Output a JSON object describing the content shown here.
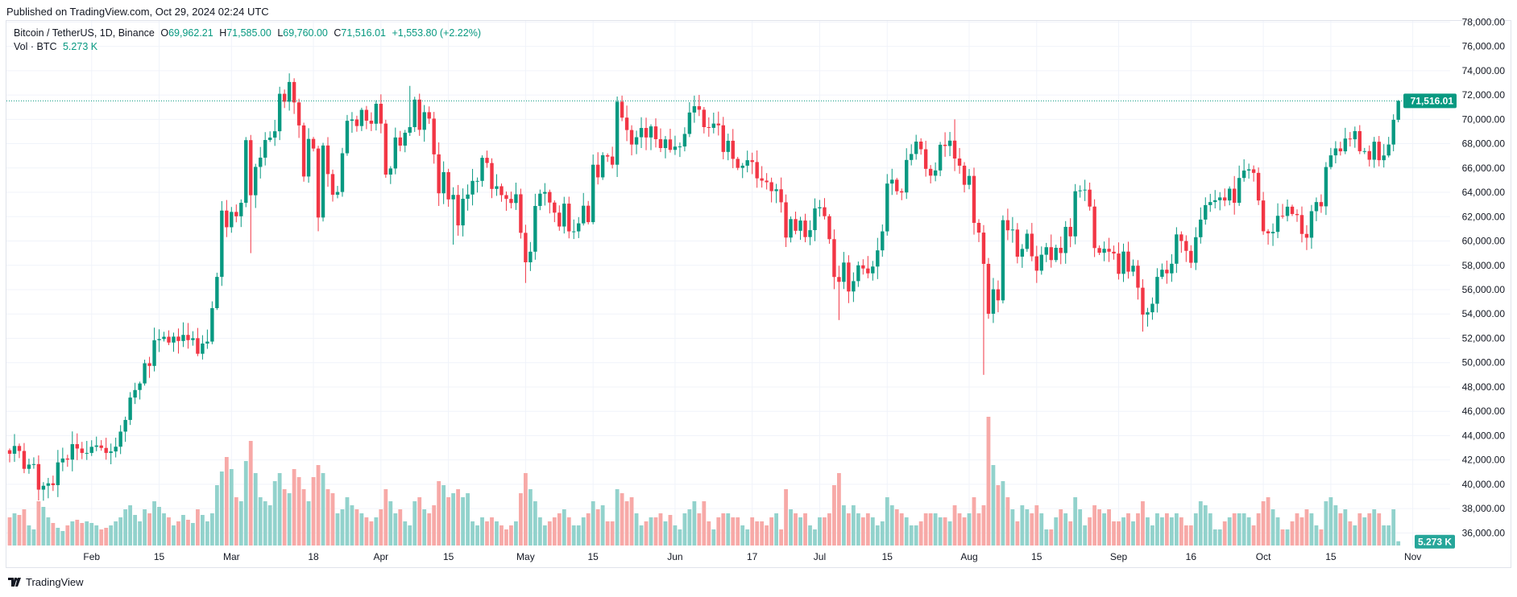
{
  "header": {
    "published": "Published on TradingView.com, Oct 29, 2024 02:24 UTC"
  },
  "legend": {
    "symbol": "Bitcoin / TetherUS, 1D, Binance",
    "o_label": "O",
    "o": "69,962.21",
    "h_label": "H",
    "h": "71,585.00",
    "l_label": "L",
    "l": "69,760.00",
    "c_label": "C",
    "c": "71,516.01",
    "change": "+1,553.80 (+2.22%)",
    "vol_label": "Vol · BTC",
    "vol": "5.273 K"
  },
  "price_tag": "71,516.01",
  "volume_tag": "5.273 K",
  "footer": {
    "logo_text": "TradingView"
  },
  "colors": {
    "up": "#089981",
    "down": "#f23645",
    "up_vol": "#92d2cc",
    "down_vol": "#f7a9a7",
    "grid": "#f0f3fa"
  },
  "chart_data": {
    "type": "candlestick",
    "title": "Bitcoin / TetherUS, 1D, Binance",
    "start_date": "2024-01-15",
    "first_open": 42800,
    "price_unit": "USDT",
    "volume_unit": "K BTC",
    "ylim": [
      35000,
      78000
    ],
    "y_ticks": [
      "78,000.00",
      "76,000.00",
      "74,000.00",
      "72,000.00",
      "70,000.00",
      "68,000.00",
      "66,000.00",
      "64,000.00",
      "62,000.00",
      "60,000.00",
      "58,000.00",
      "56,000.00",
      "54,000.00",
      "52,000.00",
      "50,000.00",
      "48,000.00",
      "46,000.00",
      "44,000.00",
      "42,000.00",
      "40,000.00",
      "38,000.00",
      "36,000.00"
    ],
    "y_tick_values": [
      78000,
      76000,
      74000,
      72000,
      70000,
      68000,
      66000,
      64000,
      62000,
      60000,
      58000,
      56000,
      54000,
      52000,
      50000,
      48000,
      46000,
      44000,
      42000,
      40000,
      38000,
      36000
    ],
    "x_ticks": [
      {
        "label": "Feb",
        "day": 17
      },
      {
        "label": "15",
        "day": 31
      },
      {
        "label": "Mar",
        "day": 46
      },
      {
        "label": "18",
        "day": 63
      },
      {
        "label": "Apr",
        "day": 77
      },
      {
        "label": "15",
        "day": 91
      },
      {
        "label": "May",
        "day": 107
      },
      {
        "label": "15",
        "day": 121
      },
      {
        "label": "Jun",
        "day": 138
      },
      {
        "label": "17",
        "day": 154
      },
      {
        "label": "Jul",
        "day": 168
      },
      {
        "label": "15",
        "day": 182
      },
      {
        "label": "Aug",
        "day": 199
      },
      {
        "label": "15",
        "day": 213
      },
      {
        "label": "Sep",
        "day": 230
      },
      {
        "label": "16",
        "day": 245
      },
      {
        "label": "Oct",
        "day": 260
      },
      {
        "label": "15",
        "day": 274
      },
      {
        "label": "Nov",
        "day": 291
      }
    ],
    "close": [
      42510,
      43150,
      42740,
      41270,
      41620,
      41660,
      39560,
      39880,
      40080,
      39930,
      41800,
      42120,
      42030,
      43300,
      42940,
      42580,
      42580,
      43080,
      43190,
      42990,
      42580,
      42700,
      43090,
      44330,
      45290,
      47130,
      47750,
      48290,
      49950,
      49730,
      51840,
      51940,
      52130,
      51650,
      52140,
      51780,
      52280,
      51850,
      52010,
      50730,
      51570,
      51730,
      54480,
      57050,
      62500,
      61130,
      62390,
      62030,
      63140,
      68290,
      63760,
      66090,
      66850,
      68300,
      68500,
      69020,
      72100,
      71450,
      73070,
      71390,
      69500,
      65300,
      68390,
      67600,
      61930,
      67850,
      65500,
      63800,
      64030,
      67210,
      69880,
      69990,
      69450,
      70780,
      69890,
      69640,
      71280,
      69650,
      65460,
      65960,
      68510,
      67840,
      68900,
      69360,
      71620,
      69140,
      70590,
      70060,
      67120,
      63920,
      65660,
      63420,
      63790,
      61280,
      63470,
      63820,
      64940,
      64940,
      66840,
      66410,
      64280,
      64500,
      63770,
      63460,
      63120,
      63840,
      60670,
      58250,
      59120,
      62880,
      63890,
      64030,
      63160,
      62330,
      61190,
      63070,
      60790,
      60790,
      61450,
      62900,
      61550,
      66270,
      65230,
      67050,
      66940,
      66270,
      71450,
      70140,
      69120,
      67930,
      68530,
      69290,
      68510,
      69420,
      68370,
      67640,
      68350,
      67490,
      67760,
      67770,
      68800,
      70560,
      71080,
      70790,
      69360,
      69300,
      69650,
      69510,
      67320,
      68240,
      66750,
      66010,
      66190,
      66640,
      66490,
      65150,
      64960,
      64830,
      64100,
      64250,
      63180,
      60280,
      61800,
      60840,
      61680,
      60320,
      60890,
      62680,
      62770,
      62040,
      60150,
      57040,
      56640,
      58230,
      55850,
      56700,
      58000,
      57740,
      57340,
      57900,
      59230,
      60790,
      64720,
      65040,
      64090,
      63990,
      66660,
      67150,
      68170,
      67540,
      65930,
      65370,
      65800,
      67910,
      67810,
      68250,
      66780,
      66190,
      64620,
      65350,
      61490,
      60690,
      58120,
      54020,
      56030,
      55120,
      61710,
      60880,
      60940,
      58710,
      59350,
      60600,
      58740,
      57560,
      58870,
      59490,
      58430,
      59440,
      59010,
      61160,
      60380,
      64090,
      64160,
      64220,
      62830,
      59420,
      59030,
      59360,
      59120,
      58970,
      57300,
      59130,
      57480,
      57970,
      56160,
      53950,
      54140,
      54840,
      57050,
      57640,
      57340,
      58130,
      60540,
      60000,
      59190,
      58210,
      60310,
      61760,
      62950,
      63200,
      63350,
      63580,
      63330,
      64300,
      63140,
      65180,
      65790,
      65890,
      65600,
      63330,
      60800,
      60630,
      60750,
      62070,
      62060,
      62820,
      62220,
      62130,
      60580,
      60270,
      62450,
      63200,
      62850,
      66080,
      67040,
      67610,
      67370,
      68420,
      68360,
      69030,
      67380,
      67390,
      66680,
      68160,
      66640,
      67030,
      67930,
      69962,
      71516.01
    ],
    "high_overrides": {
      "58": 73780,
      "196": 70000,
      "127": 71950,
      "142": 71950,
      "83": 72750,
      "288": 71585
    },
    "low_overrides": {
      "50": 59000,
      "202": 49000,
      "107": 56550,
      "172": 53500,
      "235": 52550,
      "64": 60800,
      "92": 59700,
      "288": 69760
    },
    "volume": [
      35,
      40,
      38,
      45,
      25,
      20,
      55,
      48,
      35,
      28,
      22,
      18,
      25,
      30,
      32,
      28,
      30,
      28,
      25,
      20,
      22,
      25,
      30,
      35,
      45,
      50,
      38,
      30,
      45,
      40,
      55,
      48,
      40,
      35,
      25,
      30,
      38,
      32,
      28,
      45,
      38,
      30,
      40,
      75,
      92,
      110,
      95,
      60,
      55,
      105,
      130,
      90,
      60,
      55,
      50,
      80,
      90,
      70,
      65,
      95,
      85,
      70,
      55,
      85,
      100,
      90,
      70,
      65,
      40,
      45,
      60,
      50,
      45,
      40,
      35,
      30,
      35,
      45,
      70,
      55,
      40,
      45,
      30,
      25,
      55,
      60,
      45,
      40,
      50,
      80,
      75,
      60,
      65,
      70,
      60,
      65,
      30,
      25,
      35,
      30,
      35,
      30,
      25,
      20,
      25,
      30,
      65,
      90,
      70,
      55,
      35,
      25,
      30,
      35,
      40,
      45,
      35,
      25,
      25,
      35,
      40,
      55,
      45,
      50,
      30,
      30,
      70,
      65,
      55,
      60,
      40,
      25,
      30,
      35,
      35,
      40,
      30,
      38,
      25,
      20,
      40,
      45,
      55,
      40,
      55,
      30,
      20,
      35,
      40,
      40,
      35,
      35,
      25,
      20,
      35,
      30,
      30,
      25,
      35,
      40,
      20,
      70,
      45,
      40,
      35,
      40,
      25,
      20,
      35,
      35,
      40,
      75,
      90,
      50,
      40,
      50,
      40,
      35,
      40,
      35,
      25,
      30,
      60,
      50,
      45,
      40,
      35,
      25,
      25,
      30,
      40,
      40,
      40,
      35,
      35,
      30,
      50,
      40,
      35,
      40,
      60,
      40,
      50,
      160,
      100,
      75,
      80,
      60,
      45,
      30,
      50,
      45,
      40,
      50,
      40,
      20,
      20,
      35,
      45,
      40,
      30,
      60,
      45,
      25,
      35,
      50,
      45,
      40,
      45,
      30,
      30,
      35,
      40,
      30,
      40,
      55,
      35,
      25,
      40,
      35,
      40,
      35,
      40,
      35,
      25,
      25,
      40,
      55,
      50,
      40,
      20,
      20,
      30,
      35,
      40,
      40,
      40,
      35,
      25,
      40,
      55,
      60,
      45,
      35,
      20,
      20,
      30,
      40,
      35,
      45,
      40,
      25,
      20,
      55,
      60,
      50,
      40,
      45,
      30,
      25,
      40,
      35,
      40,
      45,
      40,
      25,
      25,
      45,
      5.273
    ]
  }
}
